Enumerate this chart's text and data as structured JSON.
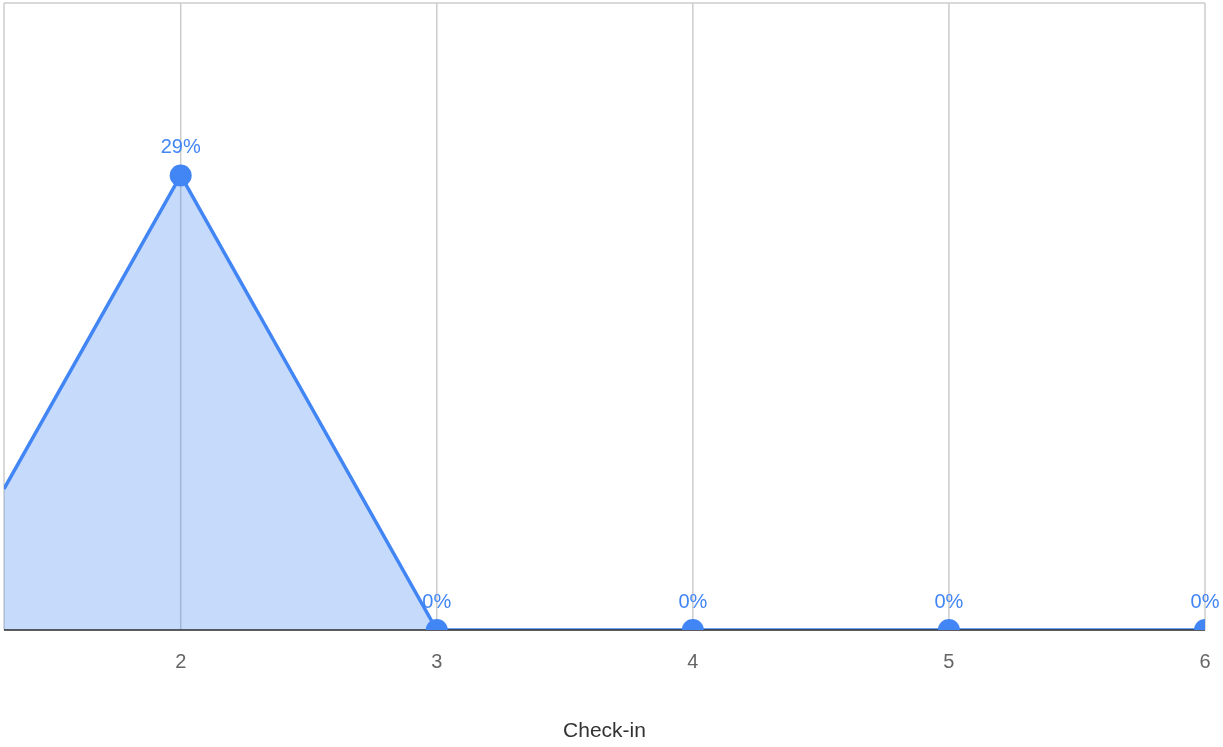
{
  "chart_data": {
    "type": "area",
    "xlabel": "Check-in",
    "x": [
      1.31,
      2,
      3,
      4,
      5,
      6
    ],
    "series": [
      {
        "color": "#4285f4",
        "values": [
          9,
          29,
          0,
          0,
          0,
          0
        ],
        "value_labels": [
          null,
          "29%",
          "0%",
          "0%",
          "0%",
          "0%"
        ]
      }
    ],
    "xlim": [
      1.31,
      6
    ],
    "xticks": [
      2,
      3,
      4,
      5,
      6
    ],
    "ylim": [
      0,
      40
    ],
    "tick_labels": "x",
    "grid": true,
    "marker": "circle"
  }
}
